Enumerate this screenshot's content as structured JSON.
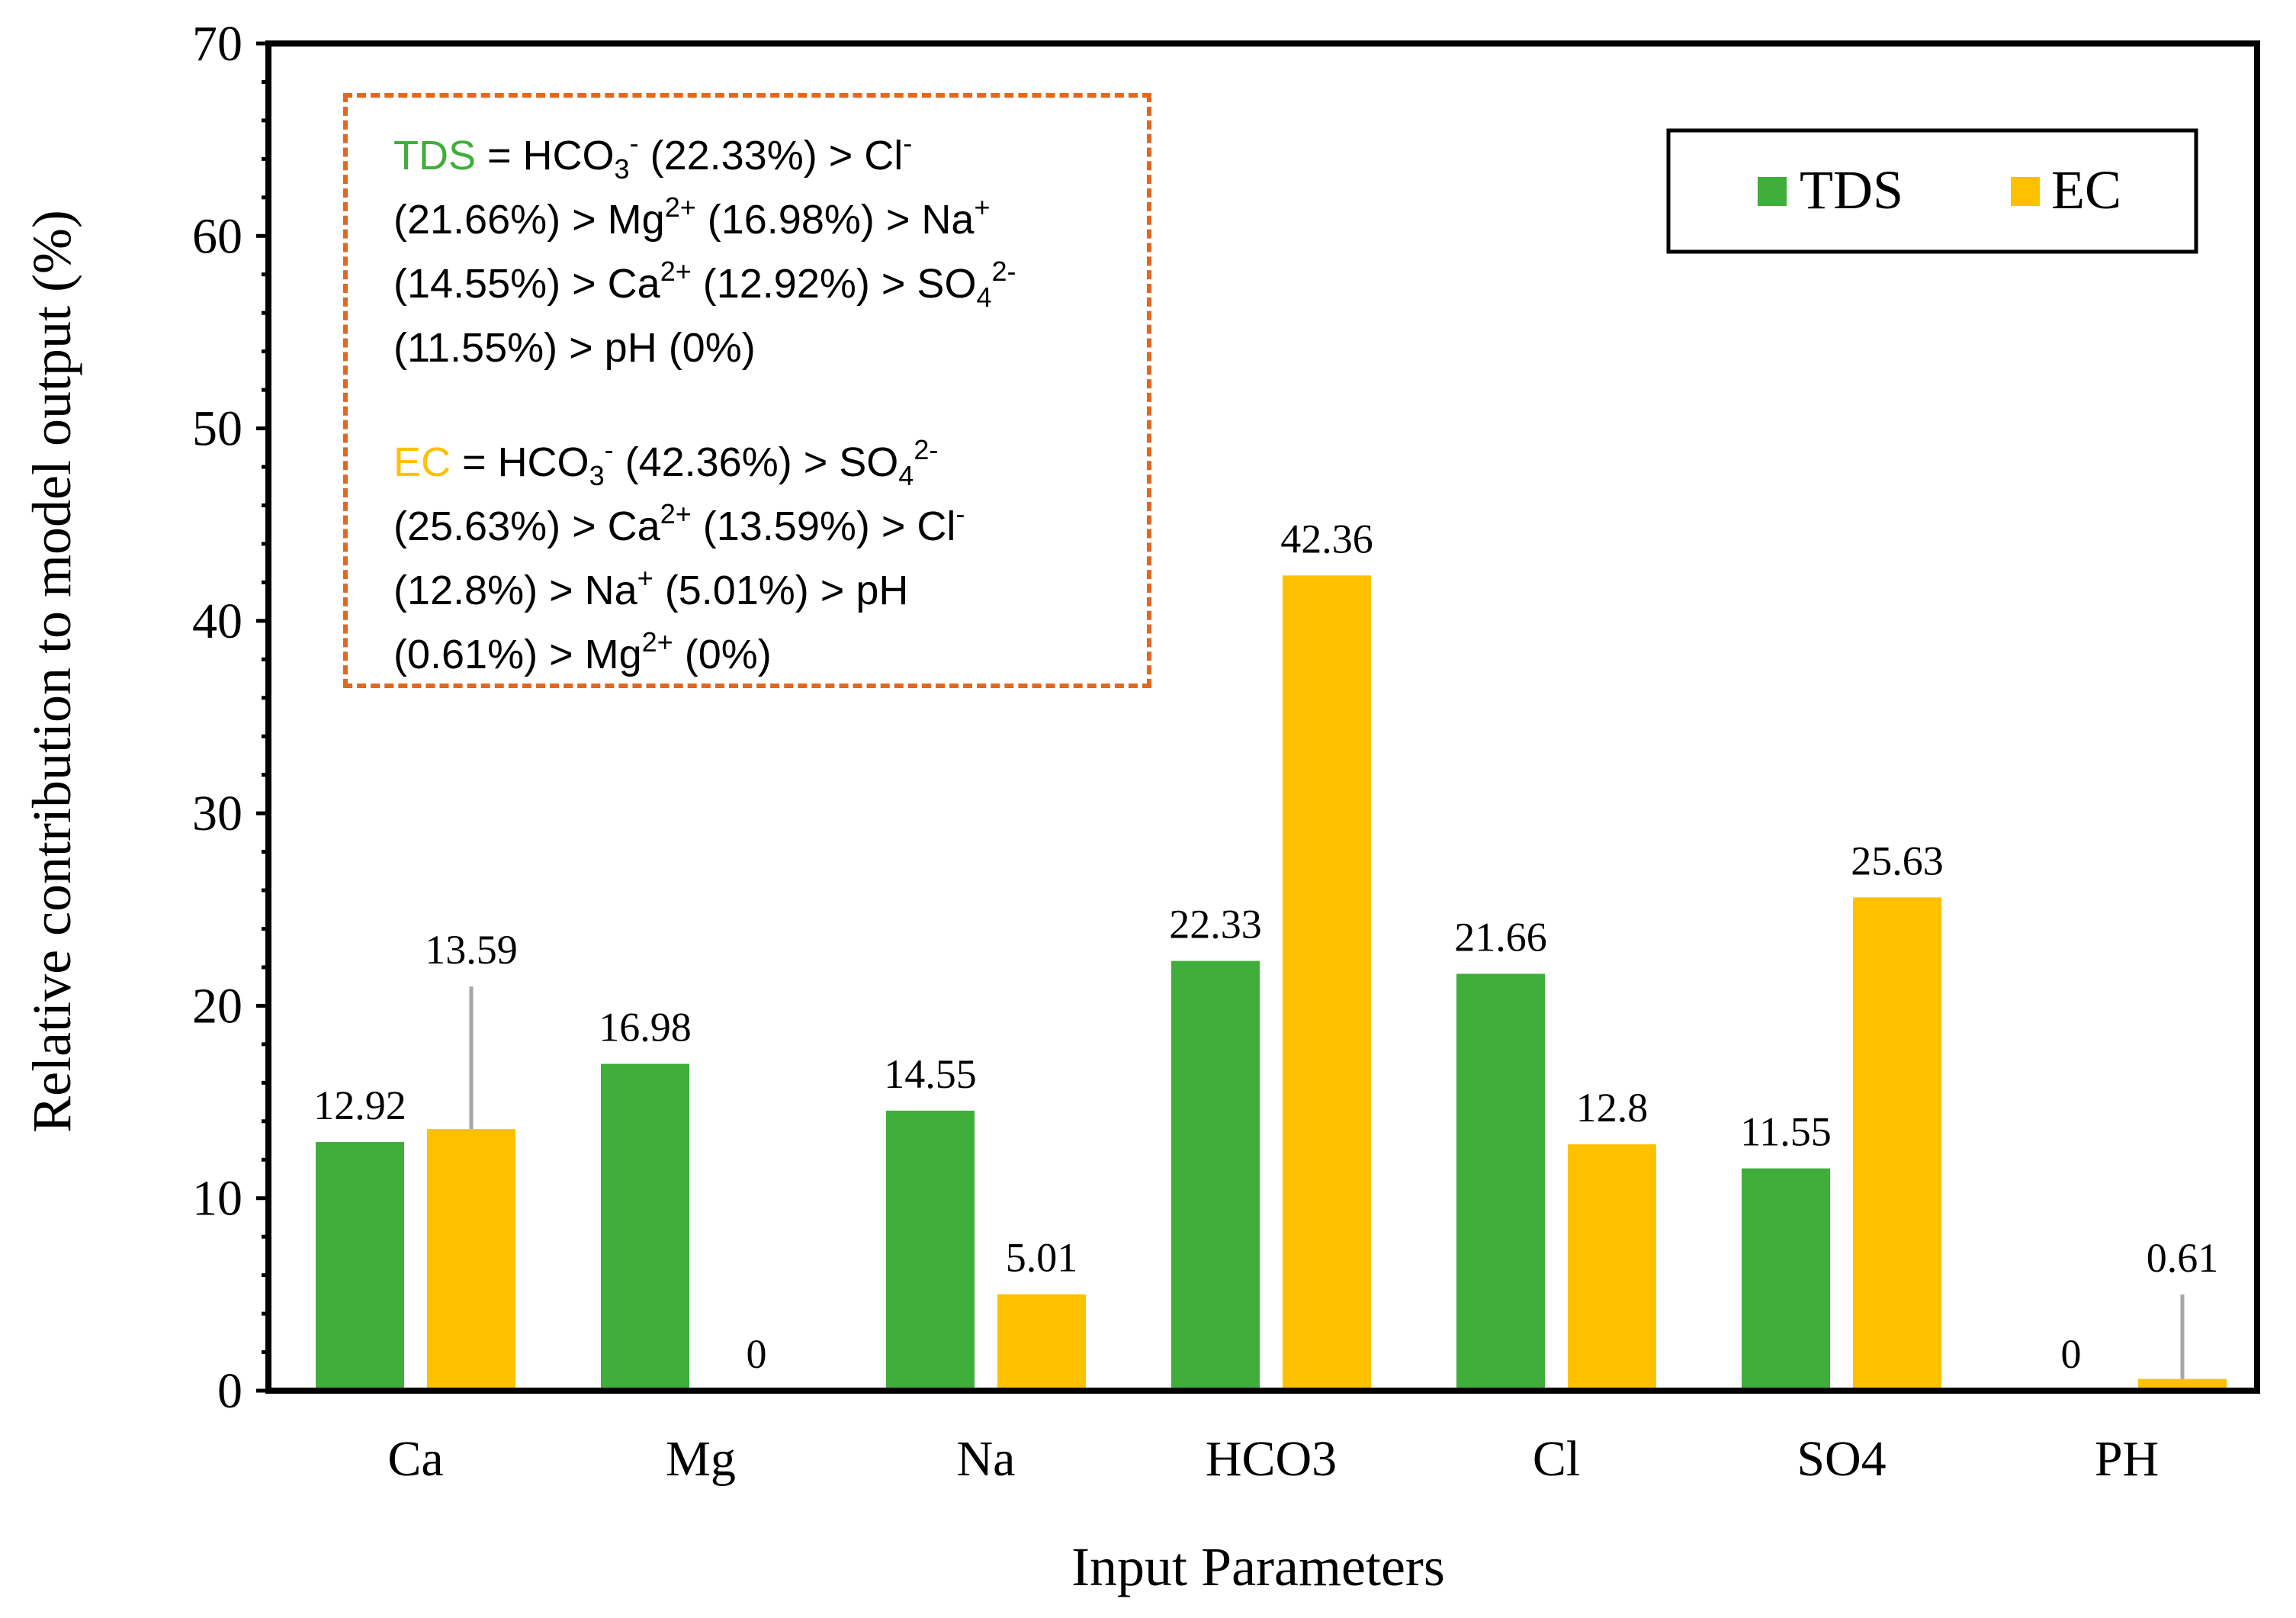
{
  "chart_data": {
    "type": "bar",
    "title": "",
    "xlabel": "Input Parameters",
    "ylabel": "Relative contribution to model output (%)",
    "ylim": [
      0,
      70
    ],
    "yticks": [
      0,
      10,
      20,
      30,
      40,
      50,
      60,
      70
    ],
    "ytick_labels": [
      "0",
      "10",
      "20",
      "30",
      "40",
      "50",
      "60",
      "70"
    ],
    "grid": false,
    "legend_position": "top-right",
    "categories": [
      "Ca",
      "Mg",
      "Na",
      "HCO3",
      "Cl",
      "SO4",
      "PH"
    ],
    "series": [
      {
        "name": "TDS",
        "color": "#3FAE3A",
        "values": [
          12.92,
          16.98,
          14.55,
          22.33,
          21.66,
          11.55,
          0
        ],
        "labels": [
          "12.92",
          "16.98",
          "14.55",
          "22.33",
          "21.66",
          "11.55",
          "0"
        ]
      },
      {
        "name": "EC",
        "color": "#FFC000",
        "values": [
          13.59,
          0,
          5.01,
          42.36,
          12.8,
          25.63,
          0.61
        ],
        "labels": [
          "13.59",
          "0",
          "5.01",
          "42.36",
          "12.8",
          "25.63",
          "0.61"
        ]
      }
    ],
    "annotations": {
      "tds_name": "TDS",
      "tds_ranking": [
        {
          "ion": "HCO",
          "sub": "3",
          "sup": "-",
          "pct": "(22.33%)"
        },
        {
          "ion": "Cl",
          "sub": "",
          "sup": "-",
          "pct": "(21.66%)"
        },
        {
          "ion": "Mg",
          "sub": "",
          "sup": "2+",
          "pct": "(16.98%)"
        },
        {
          "ion": "Na",
          "sub": "",
          "sup": "+",
          "pct": "(14.55%)"
        },
        {
          "ion": "Ca",
          "sub": "",
          "sup": "2+",
          "pct": "(12.92%)"
        },
        {
          "ion": "SO",
          "sub": "4",
          "sup": "2-",
          "pct": "(11.55%)"
        },
        {
          "ion": "pH",
          "sub": "",
          "sup": "",
          "pct": "(0%)"
        }
      ],
      "ec_name": "EC",
      "ec_ranking": [
        {
          "ion": "HCO",
          "sub": "3",
          "sup": "-",
          "pct": "(42.36%)"
        },
        {
          "ion": "SO",
          "sub": "4",
          "sup": "2-",
          "pct": "(25.63%)"
        },
        {
          "ion": "Ca",
          "sub": "",
          "sup": "2+",
          "pct": "(13.59%)"
        },
        {
          "ion": "Cl",
          "sub": "",
          "sup": "-",
          "pct": "(12.8%)"
        },
        {
          "ion": "Na",
          "sub": "",
          "sup": "+",
          "pct": "(5.01%)"
        },
        {
          "ion": "pH",
          "sub": "",
          "sup": "",
          "pct": "(0.61%)"
        },
        {
          "ion": "Mg",
          "sub": "",
          "sup": "2+",
          "pct": "(0%)"
        }
      ]
    }
  },
  "colors": {
    "tds": "#3FAE3A",
    "ec": "#FFC000",
    "annotation_border": "#E2671F",
    "error_bar": "#A6A6A6"
  }
}
